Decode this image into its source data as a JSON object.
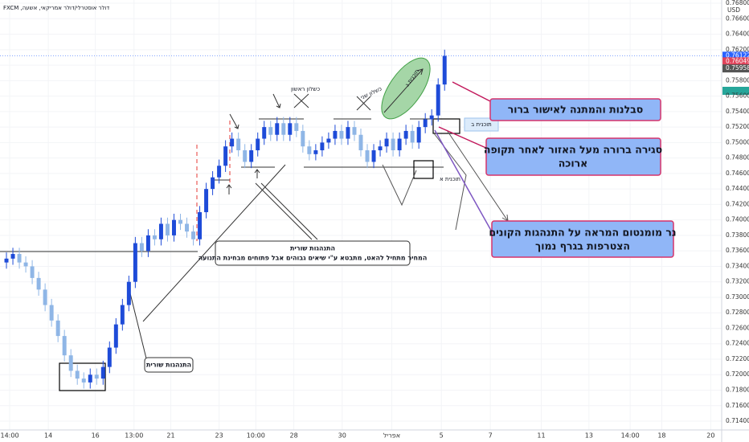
{
  "chart_data": {
    "type": "candlestick",
    "title": "דולר אוסטרלי/דולר אמריקאי, אשעה, FXCM",
    "currency": "USD",
    "up_color": "#1e4bd8",
    "down_color": "#8fb6e6",
    "x": [
      1,
      2,
      3,
      4,
      5,
      6,
      7,
      8,
      9,
      10,
      11,
      12,
      13,
      14,
      15,
      16,
      17,
      18,
      19,
      20,
      21,
      22,
      23,
      24,
      25,
      26,
      27,
      28,
      29,
      30,
      31,
      32,
      33,
      34,
      35,
      36,
      37,
      38,
      39,
      40,
      41,
      42,
      43,
      44,
      45,
      46,
      47,
      48,
      49,
      50,
      51,
      52,
      53,
      54,
      55,
      56,
      57,
      58,
      59,
      60,
      61,
      62,
      63,
      64,
      65,
      66,
      67,
      68,
      69
    ],
    "open": [
      0.7345,
      0.735,
      0.7356,
      0.7345,
      0.734,
      0.7325,
      0.731,
      0.729,
      0.727,
      0.725,
      0.7225,
      0.7205,
      0.7195,
      0.719,
      0.72,
      0.7195,
      0.721,
      0.7235,
      0.7265,
      0.729,
      0.732,
      0.737,
      0.736,
      0.738,
      0.7375,
      0.7395,
      0.738,
      0.74,
      0.7395,
      0.7385,
      0.7375,
      0.741,
      0.744,
      0.7455,
      0.747,
      0.7495,
      0.7505,
      0.749,
      0.7475,
      0.749,
      0.7505,
      0.752,
      0.751,
      0.7525,
      0.751,
      0.7525,
      0.7515,
      0.7495,
      0.7485,
      0.749,
      0.75,
      0.7505,
      0.7515,
      0.7505,
      0.752,
      0.751,
      0.749,
      0.7475,
      0.749,
      0.7495,
      0.7505,
      0.749,
      0.7505,
      0.7515,
      0.75,
      0.752,
      0.753,
      0.7535,
      0.7575
    ],
    "high": [
      0.7358,
      0.7364,
      0.7364,
      0.7353,
      0.7348,
      0.7333,
      0.7318,
      0.7298,
      0.7278,
      0.7258,
      0.7233,
      0.7213,
      0.7203,
      0.7208,
      0.7208,
      0.7218,
      0.7243,
      0.7273,
      0.7298,
      0.7328,
      0.7378,
      0.7378,
      0.7388,
      0.7388,
      0.7403,
      0.7403,
      0.7408,
      0.7408,
      0.7403,
      0.7393,
      0.7418,
      0.7448,
      0.7463,
      0.7478,
      0.7503,
      0.7513,
      0.7513,
      0.7498,
      0.7498,
      0.7513,
      0.7528,
      0.7528,
      0.7533,
      0.7533,
      0.7533,
      0.7533,
      0.7523,
      0.7503,
      0.7498,
      0.7508,
      0.7513,
      0.7523,
      0.7523,
      0.7528,
      0.7528,
      0.7518,
      0.7498,
      0.7498,
      0.7503,
      0.7513,
      0.7513,
      0.7513,
      0.7523,
      0.7523,
      0.7528,
      0.7538,
      0.7543,
      0.7583,
      0.762
    ],
    "low": [
      0.7337,
      0.7342,
      0.7337,
      0.7332,
      0.7317,
      0.7302,
      0.7282,
      0.7262,
      0.7242,
      0.7217,
      0.7197,
      0.7187,
      0.7182,
      0.7182,
      0.7187,
      0.7187,
      0.7202,
      0.7227,
      0.7257,
      0.7282,
      0.7312,
      0.7352,
      0.7352,
      0.7367,
      0.7367,
      0.7372,
      0.7372,
      0.7387,
      0.7377,
      0.7367,
      0.7367,
      0.7402,
      0.7432,
      0.7447,
      0.7462,
      0.7487,
      0.7482,
      0.7467,
      0.7467,
      0.7482,
      0.7497,
      0.7502,
      0.7502,
      0.7502,
      0.7502,
      0.7507,
      0.7487,
      0.7477,
      0.7477,
      0.7482,
      0.7492,
      0.7497,
      0.7497,
      0.7497,
      0.7502,
      0.7482,
      0.7467,
      0.7467,
      0.7482,
      0.7487,
      0.7482,
      0.7482,
      0.7497,
      0.7492,
      0.7492,
      0.7512,
      0.7522,
      0.7527,
      0.7567
    ],
    "close": [
      0.735,
      0.7356,
      0.7345,
      0.734,
      0.7325,
      0.731,
      0.729,
      0.727,
      0.725,
      0.7225,
      0.7205,
      0.7195,
      0.719,
      0.72,
      0.7195,
      0.721,
      0.7235,
      0.7265,
      0.729,
      0.732,
      0.737,
      0.736,
      0.738,
      0.7375,
      0.7395,
      0.738,
      0.74,
      0.7395,
      0.7385,
      0.7375,
      0.741,
      0.744,
      0.7455,
      0.747,
      0.7495,
      0.7505,
      0.749,
      0.7475,
      0.749,
      0.7505,
      0.752,
      0.751,
      0.7525,
      0.751,
      0.7525,
      0.7515,
      0.7495,
      0.7485,
      0.749,
      0.75,
      0.7505,
      0.7515,
      0.7505,
      0.752,
      0.751,
      0.749,
      0.7475,
      0.749,
      0.7495,
      0.7505,
      0.749,
      0.7505,
      0.7515,
      0.75,
      0.752,
      0.753,
      0.7535,
      0.7575,
      0.7612
    ],
    "xlim": [
      0,
      112
    ],
    "xticks": [
      {
        "value": 1.5,
        "label": "14:00"
      },
      {
        "value": 7.5,
        "label": "14"
      },
      {
        "value": 14.8,
        "label": "16"
      },
      {
        "value": 20.8,
        "label": "13:00"
      },
      {
        "value": 26.5,
        "label": "21"
      },
      {
        "value": 34,
        "label": "23"
      },
      {
        "value": 39.7,
        "label": "10:00"
      },
      {
        "value": 45.6,
        "label": "28"
      },
      {
        "value": 53.1,
        "label": "30"
      },
      {
        "value": 60.8,
        "label": "אפריל"
      },
      {
        "value": 68.5,
        "label": "5"
      },
      {
        "value": 76.1,
        "label": "7"
      },
      {
        "value": 84,
        "label": "11"
      },
      {
        "value": 91.4,
        "label": "13"
      },
      {
        "value": 97.8,
        "label": "14:00"
      },
      {
        "value": 102.7,
        "label": "18"
      },
      {
        "value": 110.3,
        "label": "20"
      }
    ],
    "ylim": [
      0.71286,
      0.76842
    ],
    "yticks": [
      {
        "value": 0.714,
        "label": "0.71400"
      },
      {
        "value": 0.716,
        "label": "0.71600"
      },
      {
        "value": 0.718,
        "label": "0.71800"
      },
      {
        "value": 0.72,
        "label": "0.72000"
      },
      {
        "value": 0.722,
        "label": "0.72200"
      },
      {
        "value": 0.724,
        "label": "0.72400"
      },
      {
        "value": 0.726,
        "label": "0.72600"
      },
      {
        "value": 0.728,
        "label": "0.72800"
      },
      {
        "value": 0.73,
        "label": "0.73000"
      },
      {
        "value": 0.732,
        "label": "0.73200"
      },
      {
        "value": 0.734,
        "label": "0.73400"
      },
      {
        "value": 0.736,
        "label": "0.73600"
      },
      {
        "value": 0.738,
        "label": "0.73800"
      },
      {
        "value": 0.74,
        "label": "0.74000"
      },
      {
        "value": 0.742,
        "label": "0.74200"
      },
      {
        "value": 0.744,
        "label": "0.74400"
      },
      {
        "value": 0.746,
        "label": "0.74600"
      },
      {
        "value": 0.748,
        "label": "0.74800"
      },
      {
        "value": 0.75,
        "label": "0.75000"
      },
      {
        "value": 0.752,
        "label": "0.75200"
      },
      {
        "value": 0.754,
        "label": "0.75400"
      },
      {
        "value": 0.756,
        "label": "0.75600"
      },
      {
        "value": 0.758,
        "label": "0.75800"
      },
      {
        "value": 0.76,
        "label": "0.76000"
      },
      {
        "value": 0.762,
        "label": "0.76200"
      },
      {
        "value": 0.764,
        "label": "0.76400"
      },
      {
        "value": 0.766,
        "label": "0.76600"
      },
      {
        "value": 0.768,
        "label": "0.76800"
      }
    ],
    "price_tags": [
      {
        "value": 0.76122,
        "label": "0.76122",
        "color": "#2962ff"
      },
      {
        "value": 0.76049,
        "label": "0.76049",
        "color": "#e0435a"
      },
      {
        "value": 0.75958,
        "label": "0.75958",
        "color": "#555555"
      }
    ],
    "countdown": "02:18:17",
    "annotations": {
      "first_failure": "כשלון ראשון",
      "second_failure": "כשלון שני",
      "plan_a": "תוכנית א",
      "plan_b": "תוכנית ב",
      "plan_c": "תוכנית ג",
      "bullish_note_title": "התנהגות שורית",
      "bullish_note_text": "המחיר מתחיל להאט, מתבטא ע\"י שיאים גבוהים אבל פתוחים מבחינת התנועה",
      "bullish_short": "התנהגות שורית",
      "callout_1": "סבלנות והמתנה לאישור ברור",
      "callout_2_line1": "סגירה ברורה מעל האזור לאחר תקופה",
      "callout_2_line2": "ארוכה",
      "callout_3_line1": "נר מומנטום המראה על התנהגות הקונים",
      "callout_3_line2": "הצטרפות בגרף נמוך"
    }
  }
}
